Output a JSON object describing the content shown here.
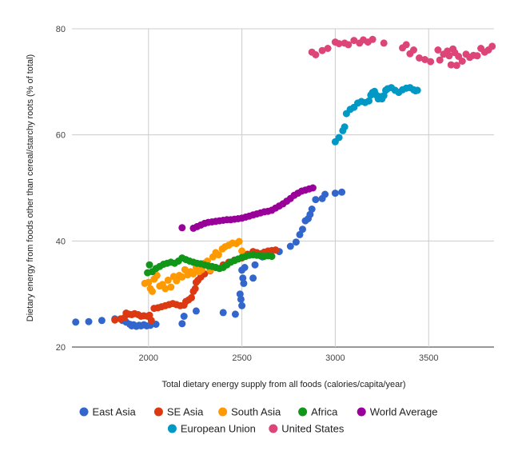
{
  "chart_data": {
    "type": "scatter",
    "title": "",
    "xlabel": "Total dietary energy supply from all foods (calories/capita/year)",
    "ylabel": "Dietary energy from foods other than cereal/starchy roots (% of total)",
    "xlim": [
      1590,
      3850
    ],
    "ylim": [
      20,
      80
    ],
    "xticks": [
      2000,
      2500,
      3000,
      3500
    ],
    "yticks": [
      20,
      40,
      60,
      80
    ],
    "grid": true,
    "legend_position": "bottom",
    "series": [
      {
        "name": "East Asia",
        "color": "#3366cc",
        "points": [
          [
            1610,
            24.7
          ],
          [
            1680,
            24.8
          ],
          [
            1750,
            25
          ],
          [
            1820,
            25.3
          ],
          [
            1860,
            25
          ],
          [
            1880,
            24.7
          ],
          [
            1900,
            24.3
          ],
          [
            1910,
            24
          ],
          [
            1920,
            24.2
          ],
          [
            1935,
            23.9
          ],
          [
            1950,
            24.1
          ],
          [
            1960,
            24
          ],
          [
            1975,
            24.2
          ],
          [
            1990,
            24
          ],
          [
            2010,
            24.1
          ],
          [
            2040,
            24.3
          ],
          [
            2180,
            24.4
          ],
          [
            2190,
            25.8
          ],
          [
            2255,
            26.8
          ],
          [
            2400,
            26.5
          ],
          [
            2465,
            26.2
          ],
          [
            2490,
            30
          ],
          [
            2495,
            29
          ],
          [
            2500,
            27.8
          ],
          [
            2505,
            33
          ],
          [
            2510,
            32
          ],
          [
            2500,
            34.5
          ],
          [
            2515,
            35
          ],
          [
            2560,
            33
          ],
          [
            2570,
            35.5
          ],
          [
            2610,
            37
          ],
          [
            2650,
            38
          ],
          [
            2700,
            38
          ],
          [
            2760,
            39
          ],
          [
            2790,
            39.8
          ],
          [
            2810,
            41.2
          ],
          [
            2825,
            42.2
          ],
          [
            2840,
            43.8
          ],
          [
            2855,
            44.2
          ],
          [
            2865,
            45
          ],
          [
            2875,
            46
          ],
          [
            2895,
            47.8
          ],
          [
            2930,
            48
          ],
          [
            2945,
            48.8
          ],
          [
            3000,
            49
          ],
          [
            3035,
            49.2
          ]
        ]
      },
      {
        "name": "SE Asia",
        "color": "#dc3912",
        "points": [
          [
            1820,
            25.1
          ],
          [
            1850,
            25.3
          ],
          [
            1870,
            25.5
          ],
          [
            1880,
            26.4
          ],
          [
            1895,
            26.2
          ],
          [
            1910,
            26.1
          ],
          [
            1925,
            26.3
          ],
          [
            1945,
            26.1
          ],
          [
            1960,
            25.8
          ],
          [
            1975,
            25.9
          ],
          [
            1995,
            25.8
          ],
          [
            2005,
            26
          ],
          [
            2015,
            25
          ],
          [
            2030,
            27.3
          ],
          [
            2050,
            27.4
          ],
          [
            2070,
            27.6
          ],
          [
            2090,
            27.8
          ],
          [
            2110,
            28
          ],
          [
            2130,
            28.2
          ],
          [
            2150,
            28
          ],
          [
            2170,
            27.8
          ],
          [
            2190,
            27.9
          ],
          [
            2200,
            28.6
          ],
          [
            2215,
            28.9
          ],
          [
            2230,
            29.3
          ],
          [
            2240,
            30.5
          ],
          [
            2250,
            31
          ],
          [
            2255,
            32.2
          ],
          [
            2265,
            32.6
          ],
          [
            2280,
            33.2
          ],
          [
            2300,
            33.8
          ],
          [
            2330,
            34.4
          ],
          [
            2360,
            35
          ],
          [
            2400,
            35.5
          ],
          [
            2430,
            36
          ],
          [
            2460,
            36.4
          ],
          [
            2500,
            36.8
          ],
          [
            2530,
            37.5
          ],
          [
            2560,
            38
          ],
          [
            2580,
            37.8
          ],
          [
            2600,
            37.6
          ],
          [
            2620,
            37.9
          ],
          [
            2640,
            38.1
          ],
          [
            2660,
            38.2
          ],
          [
            2680,
            38.3
          ]
        ]
      },
      {
        "name": "South Asia",
        "color": "#ff9900",
        "points": [
          [
            1980,
            32
          ],
          [
            2000,
            32.2
          ],
          [
            2010,
            31
          ],
          [
            2020,
            30.5
          ],
          [
            2030,
            32.8
          ],
          [
            2045,
            33.5
          ],
          [
            2060,
            31.5
          ],
          [
            2075,
            31.8
          ],
          [
            2090,
            31
          ],
          [
            2105,
            32.6
          ],
          [
            2120,
            31.3
          ],
          [
            2135,
            33.3
          ],
          [
            2150,
            32.5
          ],
          [
            2165,
            33.5
          ],
          [
            2180,
            33.2
          ],
          [
            2195,
            34.6
          ],
          [
            2210,
            33.6
          ],
          [
            2225,
            34.2
          ],
          [
            2240,
            33.8
          ],
          [
            2255,
            35
          ],
          [
            2270,
            34.2
          ],
          [
            2285,
            34.6
          ],
          [
            2300,
            35.8
          ],
          [
            2315,
            36.2
          ],
          [
            2330,
            34.5
          ],
          [
            2345,
            37
          ],
          [
            2360,
            37.8
          ],
          [
            2375,
            37.4
          ],
          [
            2395,
            38.5
          ],
          [
            2410,
            38.9
          ],
          [
            2430,
            39.2
          ],
          [
            2450,
            39.6
          ],
          [
            2470,
            39.5
          ],
          [
            2485,
            39.9
          ],
          [
            2500,
            38.1
          ]
        ]
      },
      {
        "name": "Africa",
        "color": "#109618",
        "points": [
          [
            1995,
            34
          ],
          [
            2005,
            35.5
          ],
          [
            2020,
            34.2
          ],
          [
            2040,
            34.8
          ],
          [
            2060,
            35.2
          ],
          [
            2080,
            35.6
          ],
          [
            2100,
            35.8
          ],
          [
            2120,
            36
          ],
          [
            2140,
            35.8
          ],
          [
            2160,
            36.2
          ],
          [
            2180,
            36.8
          ],
          [
            2200,
            36.5
          ],
          [
            2220,
            36.2
          ],
          [
            2240,
            36
          ],
          [
            2260,
            35.8
          ],
          [
            2280,
            35.7
          ],
          [
            2300,
            35.5
          ],
          [
            2320,
            35.3
          ],
          [
            2340,
            35.2
          ],
          [
            2360,
            35
          ],
          [
            2380,
            34.8
          ],
          [
            2400,
            35
          ],
          [
            2420,
            35.5
          ],
          [
            2440,
            36
          ],
          [
            2460,
            36.3
          ],
          [
            2480,
            36.6
          ],
          [
            2500,
            36.9
          ],
          [
            2520,
            37.1
          ],
          [
            2540,
            37.3
          ],
          [
            2560,
            37.4
          ],
          [
            2580,
            37.3
          ],
          [
            2600,
            37.2
          ],
          [
            2620,
            37.1
          ],
          [
            2640,
            37.2
          ],
          [
            2660,
            37.1
          ]
        ]
      },
      {
        "name": "World Average",
        "color": "#990099",
        "points": [
          [
            2180,
            42.5
          ],
          [
            2240,
            42.4
          ],
          [
            2260,
            42.7
          ],
          [
            2280,
            43
          ],
          [
            2300,
            43.3
          ],
          [
            2320,
            43.5
          ],
          [
            2340,
            43.6
          ],
          [
            2360,
            43.7
          ],
          [
            2380,
            43.8
          ],
          [
            2400,
            43.9
          ],
          [
            2420,
            44
          ],
          [
            2440,
            44
          ],
          [
            2460,
            44.1
          ],
          [
            2480,
            44.2
          ],
          [
            2500,
            44.3
          ],
          [
            2520,
            44.5
          ],
          [
            2540,
            44.7
          ],
          [
            2560,
            44.9
          ],
          [
            2580,
            45.1
          ],
          [
            2600,
            45.3
          ],
          [
            2620,
            45.5
          ],
          [
            2640,
            45.6
          ],
          [
            2660,
            45.8
          ],
          [
            2680,
            46.2
          ],
          [
            2700,
            46.6
          ],
          [
            2720,
            47
          ],
          [
            2740,
            47.5
          ],
          [
            2760,
            48
          ],
          [
            2780,
            48.6
          ],
          [
            2800,
            49
          ],
          [
            2820,
            49.4
          ],
          [
            2840,
            49.6
          ],
          [
            2860,
            49.8
          ],
          [
            2880,
            50
          ]
        ]
      },
      {
        "name": "European Union",
        "color": "#0099c6",
        "points": [
          [
            3000,
            58.7
          ],
          [
            3020,
            59.5
          ],
          [
            3040,
            60.8
          ],
          [
            3050,
            61.5
          ],
          [
            3060,
            64
          ],
          [
            3080,
            64.8
          ],
          [
            3100,
            65.2
          ],
          [
            3120,
            66
          ],
          [
            3140,
            66.3
          ],
          [
            3160,
            66.1
          ],
          [
            3180,
            66.4
          ],
          [
            3190,
            67.5
          ],
          [
            3200,
            68
          ],
          [
            3210,
            68.2
          ],
          [
            3220,
            67.5
          ],
          [
            3230,
            66.8
          ],
          [
            3240,
            67.2
          ],
          [
            3250,
            66.8
          ],
          [
            3260,
            67.4
          ],
          [
            3270,
            68.4
          ],
          [
            3280,
            68.7
          ],
          [
            3300,
            68.9
          ],
          [
            3320,
            68.4
          ],
          [
            3340,
            68
          ],
          [
            3360,
            68.5
          ],
          [
            3380,
            68.8
          ],
          [
            3400,
            68.9
          ],
          [
            3420,
            68.5
          ],
          [
            3430,
            68.3
          ],
          [
            3440,
            68.4
          ]
        ]
      },
      {
        "name": "United States",
        "color": "#dd4477",
        "points": [
          [
            2875,
            75.6
          ],
          [
            2895,
            75.1
          ],
          [
            2930,
            75.9
          ],
          [
            2960,
            76.3
          ],
          [
            3000,
            77.5
          ],
          [
            3020,
            77.2
          ],
          [
            3050,
            77.3
          ],
          [
            3070,
            77
          ],
          [
            3100,
            77.8
          ],
          [
            3130,
            77.3
          ],
          [
            3150,
            77.9
          ],
          [
            3175,
            77.5
          ],
          [
            3200,
            78
          ],
          [
            3260,
            77.3
          ],
          [
            3360,
            76.4
          ],
          [
            3380,
            77
          ],
          [
            3400,
            75.3
          ],
          [
            3420,
            76
          ],
          [
            3450,
            74.5
          ],
          [
            3480,
            74.2
          ],
          [
            3510,
            73.8
          ],
          [
            3550,
            76
          ],
          [
            3560,
            74.1
          ],
          [
            3580,
            75.2
          ],
          [
            3600,
            75.8
          ],
          [
            3610,
            74.9
          ],
          [
            3620,
            73.2
          ],
          [
            3630,
            76.2
          ],
          [
            3640,
            75.5
          ],
          [
            3650,
            73.1
          ],
          [
            3660,
            74.8
          ],
          [
            3680,
            73.9
          ],
          [
            3700,
            75.2
          ],
          [
            3720,
            74.6
          ],
          [
            3740,
            75
          ],
          [
            3760,
            74.9
          ],
          [
            3780,
            76.3
          ],
          [
            3800,
            75.6
          ],
          [
            3820,
            76
          ],
          [
            3840,
            76.7
          ]
        ]
      }
    ]
  }
}
